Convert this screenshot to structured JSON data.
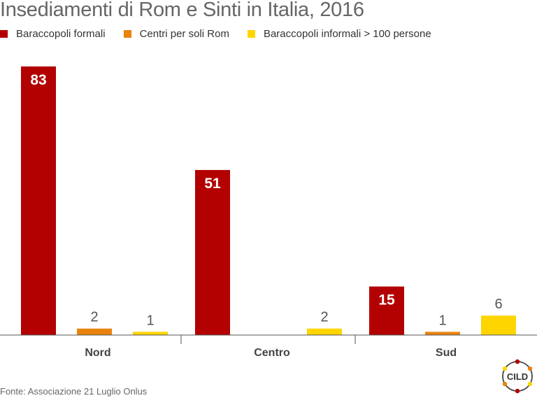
{
  "chart_data": {
    "type": "bar",
    "title": "Insediamenti di Rom e Sinti in Italia, 2016",
    "categories": [
      "Nord",
      "Centro",
      "Sud"
    ],
    "series": [
      {
        "name": "Baraccopoli formali",
        "values": [
          83,
          51,
          15
        ],
        "labels": [
          "83",
          "51",
          "15"
        ],
        "color": "#b30000"
      },
      {
        "name": "Centri per soli Rom",
        "values": [
          2,
          0,
          1
        ],
        "labels": [
          "2",
          "",
          "1"
        ],
        "color": "#e8830e"
      },
      {
        "name": "Baraccopoli informali > 100 persone",
        "values": [
          1,
          2,
          6
        ],
        "labels": [
          "1",
          "2",
          "6"
        ],
        "color": "#ffd500"
      }
    ],
    "ylim": [
      0,
      83
    ],
    "grid": false,
    "legend_position": "top-left"
  },
  "source": "Fonte: Associazione 21 Luglio Onlus",
  "logo": {
    "text": "CILD",
    "dot_colors": [
      "#b30000",
      "#e8830e",
      "#ffd500"
    ]
  }
}
